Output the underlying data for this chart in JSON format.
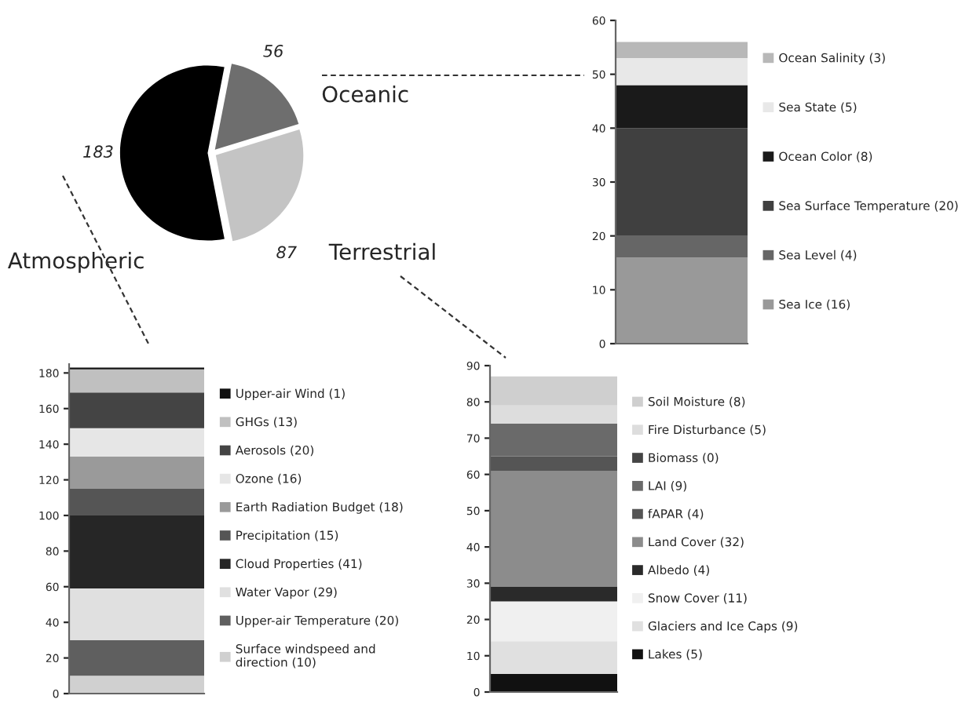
{
  "chart_data": [
    {
      "type": "pie",
      "categories": [
        "Atmospheric",
        "Terrestrial",
        "Oceanic"
      ],
      "values": [
        183,
        87,
        56
      ],
      "colors": [
        "#000000",
        "#c4c4c4",
        "#6e6e6e"
      ],
      "data_labels": true
    },
    {
      "type": "bar",
      "stacked": true,
      "categories": [
        null
      ],
      "ylim": [
        0,
        60
      ],
      "yticks": [
        0,
        10,
        20,
        30,
        40,
        50,
        60
      ],
      "tick_labels": "y",
      "legend": "right",
      "series": [
        {
          "name": "Sea Ice (16)",
          "color": "#999999",
          "values": [
            16
          ]
        },
        {
          "name": "Sea Level (4)",
          "color": "#666666",
          "values": [
            4
          ]
        },
        {
          "name": "Sea Surface Temperature (20)",
          "color": "#404040",
          "values": [
            20
          ]
        },
        {
          "name": "Ocean Color (8)",
          "color": "#1a1a1a",
          "values": [
            8
          ]
        },
        {
          "name": "Sea State (5)",
          "color": "#e8e8e8",
          "values": [
            5
          ]
        },
        {
          "name": "Ocean Salinity (3)",
          "color": "#b8b8b8",
          "values": [
            3
          ]
        }
      ]
    },
    {
      "type": "bar",
      "stacked": true,
      "categories": [
        null
      ],
      "ylim": [
        0,
        185
      ],
      "yticks": [
        0,
        20,
        40,
        60,
        80,
        100,
        120,
        140,
        160,
        180
      ],
      "tick_labels": "y",
      "legend": "right",
      "series": [
        {
          "name": "Surface windspeed and\ndirection (10)",
          "color": "#d0d0d0",
          "values": [
            10
          ]
        },
        {
          "name": "Upper-air Temperature (20)",
          "color": "#5f5f5f",
          "values": [
            20
          ]
        },
        {
          "name": "Water Vapor (29)",
          "color": "#e0e0e0",
          "values": [
            29
          ]
        },
        {
          "name": "Cloud Properties (41)",
          "color": "#262626",
          "values": [
            41
          ]
        },
        {
          "name": "Precipitation (15)",
          "color": "#555555",
          "values": [
            15
          ]
        },
        {
          "name": "Earth Radiation Budget (18)",
          "color": "#9a9a9a",
          "values": [
            18
          ]
        },
        {
          "name": "Ozone (16)",
          "color": "#e6e6e6",
          "values": [
            16
          ]
        },
        {
          "name": "Aerosols (20)",
          "color": "#444444",
          "values": [
            20
          ]
        },
        {
          "name": "GHGs (13)",
          "color": "#c0c0c0",
          "values": [
            13
          ]
        },
        {
          "name": "Upper-air Wind (1)",
          "color": "#111111",
          "values": [
            1
          ]
        }
      ]
    },
    {
      "type": "bar",
      "stacked": true,
      "categories": [
        null
      ],
      "ylim": [
        0,
        90
      ],
      "yticks": [
        0,
        10,
        20,
        30,
        40,
        50,
        60,
        70,
        80,
        90
      ],
      "tick_labels": "y",
      "legend": "right",
      "series": [
        {
          "name": "Lakes (5)",
          "color": "#111111",
          "values": [
            5
          ]
        },
        {
          "name": "Glaciers and Ice Caps (9)",
          "color": "#e0e0e0",
          "values": [
            9
          ]
        },
        {
          "name": "Snow Cover (11)",
          "color": "#f0f0f0",
          "values": [
            11
          ]
        },
        {
          "name": "Albedo (4)",
          "color": "#2a2a2a",
          "values": [
            4
          ]
        },
        {
          "name": "Land Cover (32)",
          "color": "#8c8c8c",
          "values": [
            32
          ]
        },
        {
          "name": "fAPAR (4)",
          "color": "#555555",
          "values": [
            4
          ]
        },
        {
          "name": "LAI (9)",
          "color": "#6a6a6a",
          "values": [
            9
          ]
        },
        {
          "name": "Biomass (0)",
          "color": "#444444",
          "values": [
            0
          ]
        },
        {
          "name": "Fire Disturbance (5)",
          "color": "#dddddd",
          "values": [
            5
          ]
        },
        {
          "name": "Soil Moisture (8)",
          "color": "#cfcfcf",
          "values": [
            8
          ]
        }
      ]
    }
  ]
}
